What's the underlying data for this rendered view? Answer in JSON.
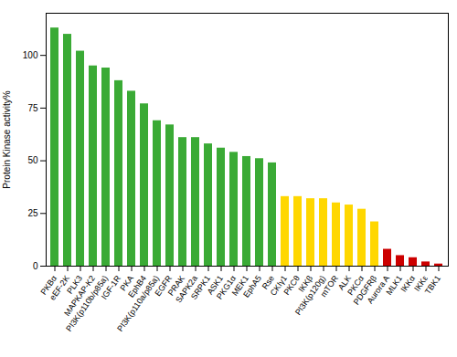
{
  "chart_data": {
    "type": "bar",
    "categories": [
      "PKBα",
      "eEF-2K",
      "PLK3",
      "MAPKAP-K2",
      "PI3K(p110b/p85a)",
      "IGF-1R",
      "PKA",
      "EphB4",
      "PI3K(p110a/p85a)",
      "EGFR",
      "PRAK",
      "SAPK2a",
      "SRPK1",
      "ASK1",
      "PKG1α",
      "MEK1",
      "EphA5",
      "Rse",
      "CKIγ1",
      "PKCθ",
      "IKKβ",
      "PI3K(p120g)",
      "mTOR",
      "ALK",
      "PKCα",
      "PDGFRβ",
      "Aurora A",
      "MLK1",
      "IKKα",
      "IKKε",
      "TBK1"
    ],
    "values": [
      113,
      110,
      102,
      95,
      94,
      88,
      83,
      77,
      69,
      67,
      61,
      61,
      58,
      56,
      54,
      52,
      51,
      49,
      33,
      33,
      32,
      32,
      30,
      29,
      27,
      21,
      8,
      5,
      4,
      2,
      1
    ],
    "colors": [
      "#3aaa35",
      "#3aaa35",
      "#3aaa35",
      "#3aaa35",
      "#3aaa35",
      "#3aaa35",
      "#3aaa35",
      "#3aaa35",
      "#3aaa35",
      "#3aaa35",
      "#3aaa35",
      "#3aaa35",
      "#3aaa35",
      "#3aaa35",
      "#3aaa35",
      "#3aaa35",
      "#3aaa35",
      "#3aaa35",
      "#ffd700",
      "#ffd700",
      "#ffd700",
      "#ffd700",
      "#ffd700",
      "#ffd700",
      "#ffd700",
      "#ffd700",
      "#cc0000",
      "#cc0000",
      "#cc0000",
      "#cc0000",
      "#cc0000"
    ],
    "ylabel": "Protein Kinase activity%",
    "ylim": [
      0,
      120
    ],
    "yticks": [
      0,
      25,
      50,
      75,
      100
    ],
    "grid": false
  }
}
